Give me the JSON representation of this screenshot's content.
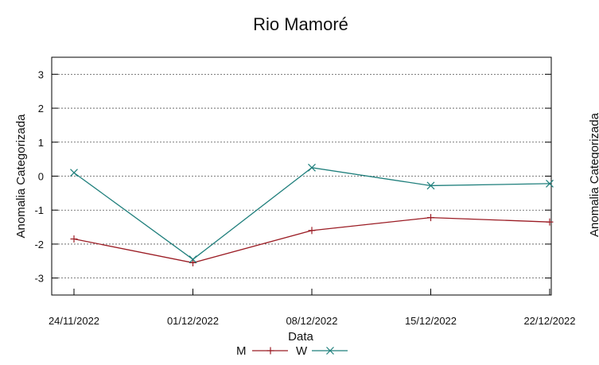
{
  "chart_data": {
    "type": "line",
    "title": "Rio Mamoré",
    "xlabel": "Data",
    "ylabel": "Anomalia Categorizada",
    "right_ylabel": "Anomalia Categorizada",
    "categories": [
      "24/11/2022",
      "01/12/2022",
      "08/12/2022",
      "15/12/2022",
      "22/12/2022"
    ],
    "ylim": [
      -3.5,
      3.5
    ],
    "yticks": [
      -3,
      -2,
      -1,
      0,
      1,
      2,
      3
    ],
    "grid": "horizontal dotted",
    "legend_position": "bottom-center",
    "series": [
      {
        "name": "M",
        "marker": "+",
        "color": "#9b1c24",
        "values": [
          -1.85,
          -2.55,
          -1.6,
          -1.22,
          -1.35
        ]
      },
      {
        "name": "W",
        "marker": "x",
        "color": "#1f7f7c",
        "values": [
          0.1,
          -2.45,
          0.25,
          -0.28,
          -0.22
        ]
      }
    ]
  }
}
